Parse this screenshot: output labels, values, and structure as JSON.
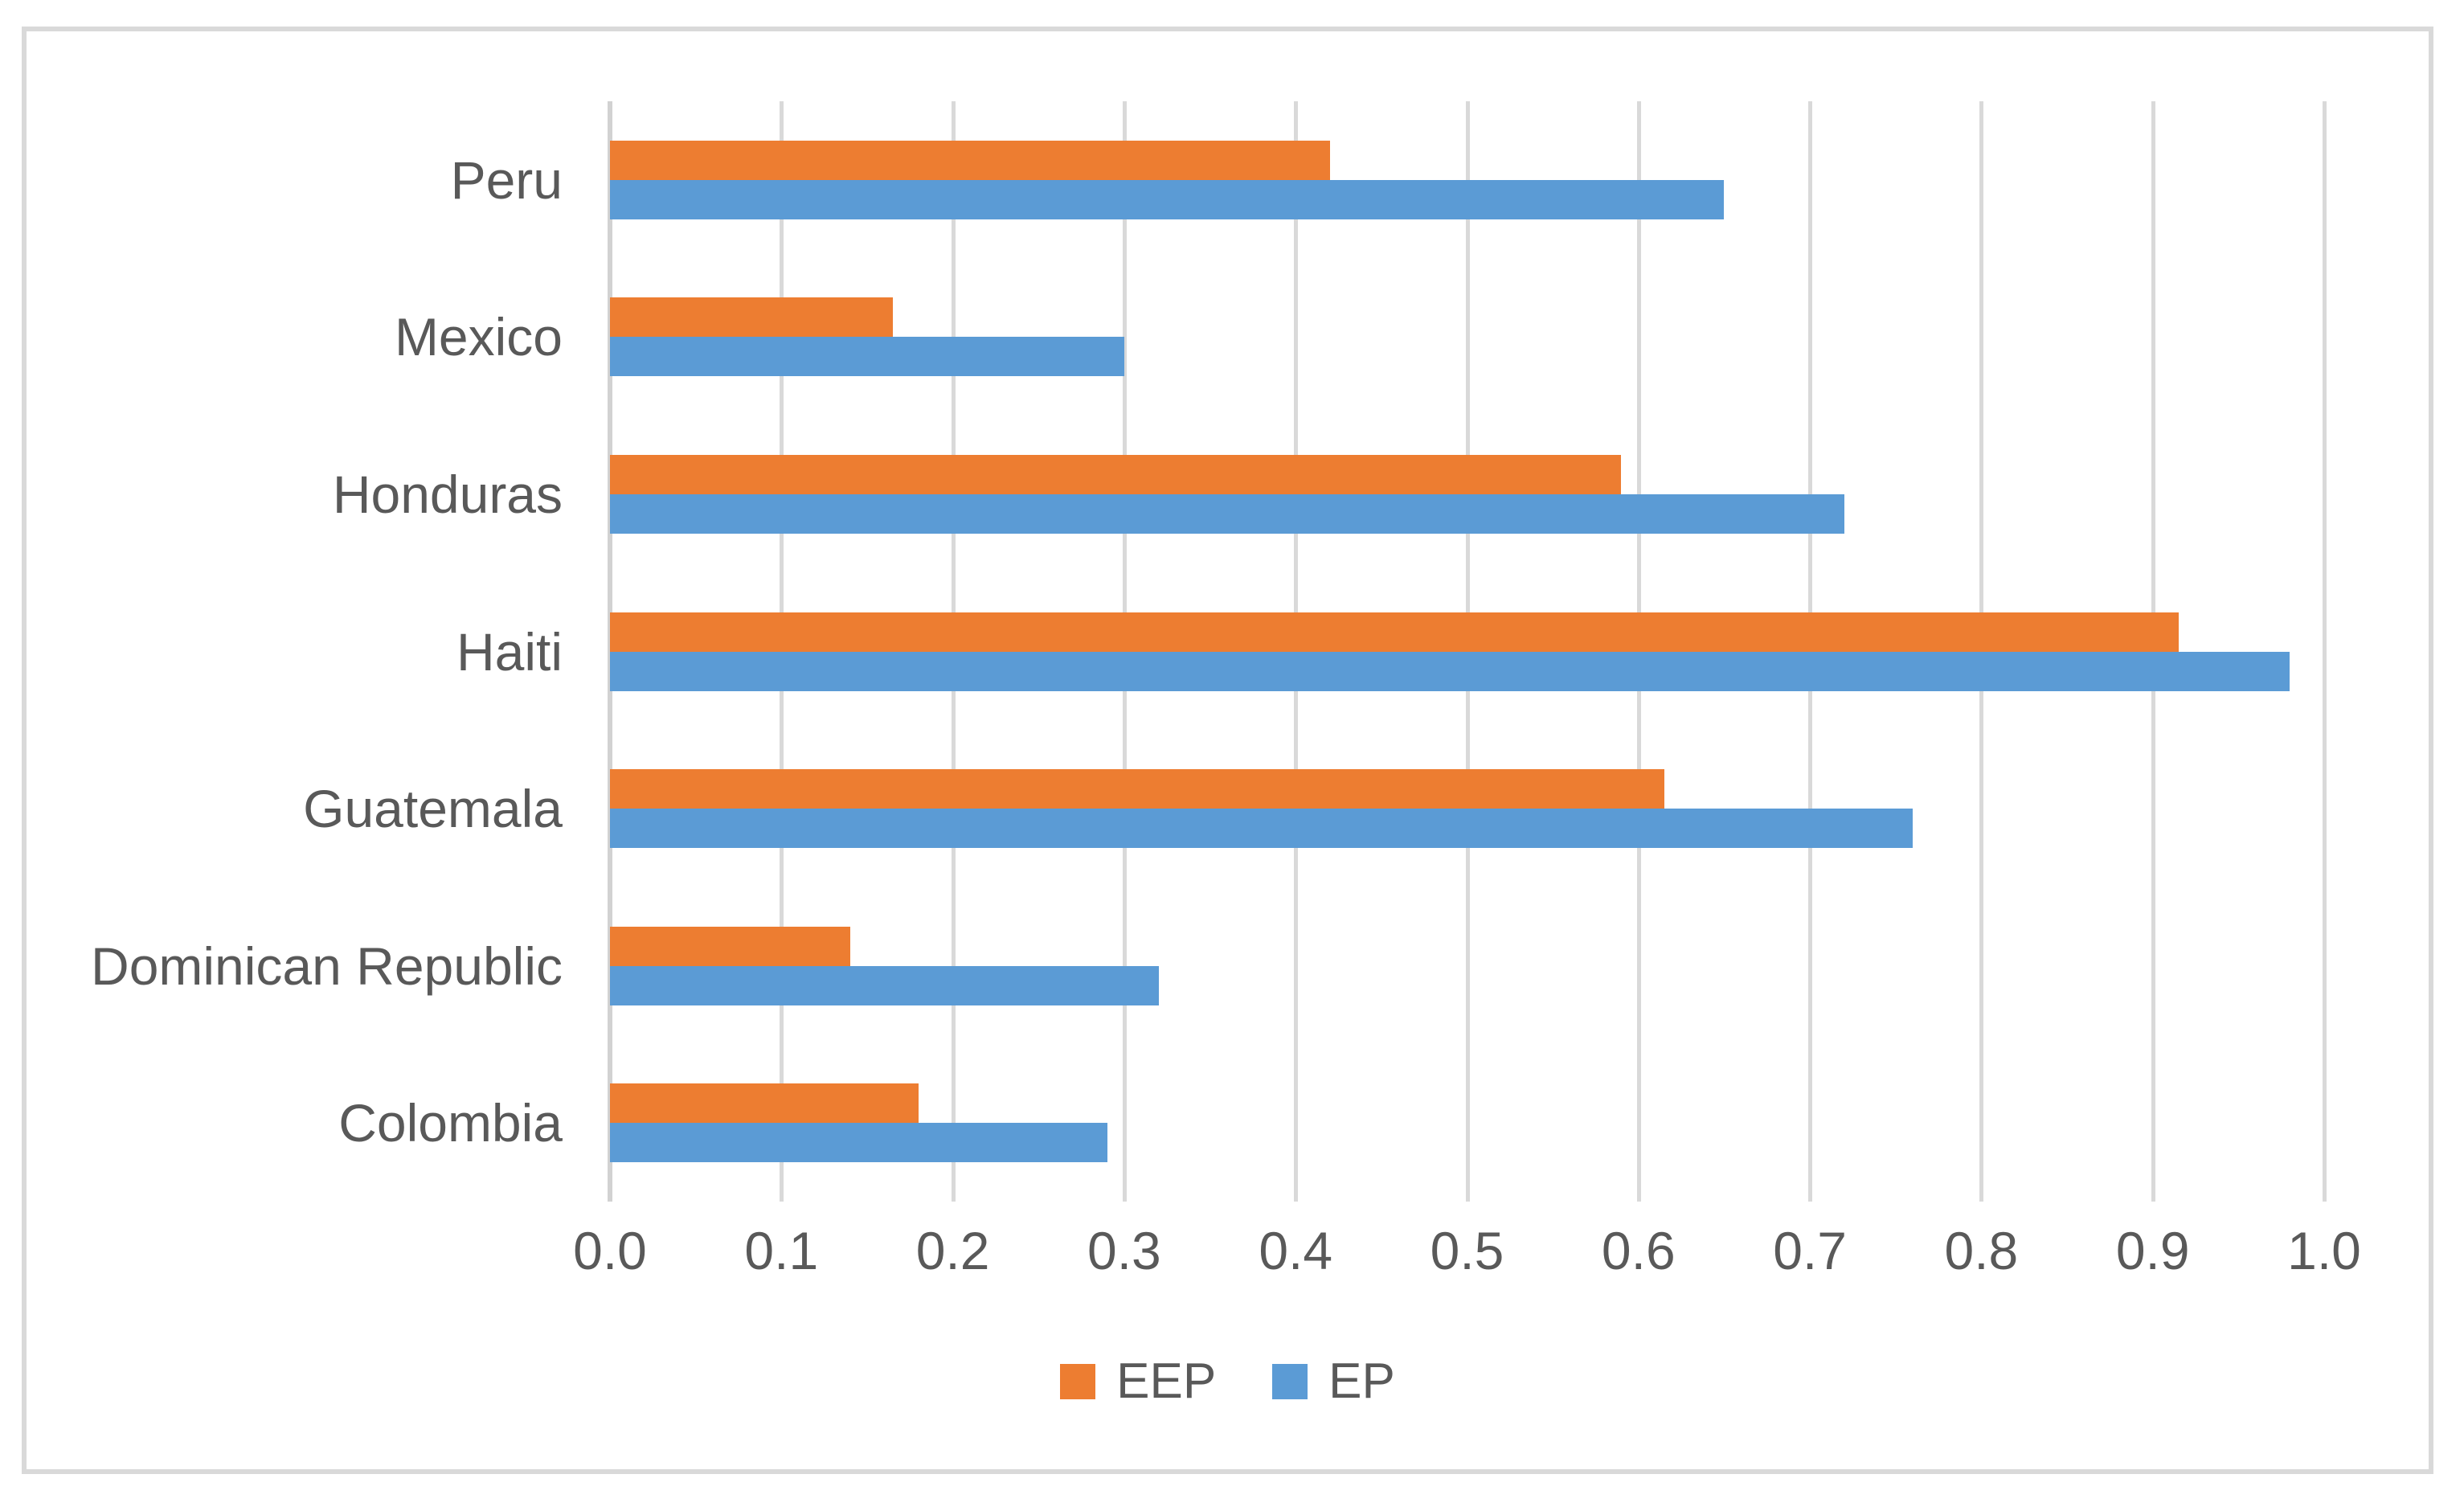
{
  "chart_data": {
    "type": "bar",
    "orientation": "horizontal",
    "title": "",
    "xlabel": "",
    "ylabel": "",
    "categories": [
      "Peru",
      "Mexico",
      "Honduras",
      "Haiti",
      "Guatemala",
      "Dominican Republic",
      "Colombia"
    ],
    "series": [
      {
        "name": "EEP",
        "color": "#ED7D31",
        "values": [
          0.42,
          0.165,
          0.59,
          0.915,
          0.615,
          0.14,
          0.18
        ]
      },
      {
        "name": "EP",
        "color": "#5B9BD5",
        "values": [
          0.65,
          0.3,
          0.72,
          0.98,
          0.76,
          0.32,
          0.29
        ]
      }
    ],
    "xlim": [
      0.0,
      1.0
    ],
    "x_tick_labels": [
      "0.0",
      "0.1",
      "0.2",
      "0.3",
      "0.4",
      "0.5",
      "0.6",
      "0.7",
      "0.8",
      "0.9",
      "1.0"
    ],
    "grid": true,
    "legend_position": "bottom-center"
  },
  "colors": {
    "series_eep": "#ED7D31",
    "series_ep": "#5B9BD5",
    "gridline": "#D9D9D9",
    "axis_line": "#D2D2D2",
    "text": "#595959",
    "chart_border": "#D9D9D9",
    "background": "#FFFFFF"
  }
}
